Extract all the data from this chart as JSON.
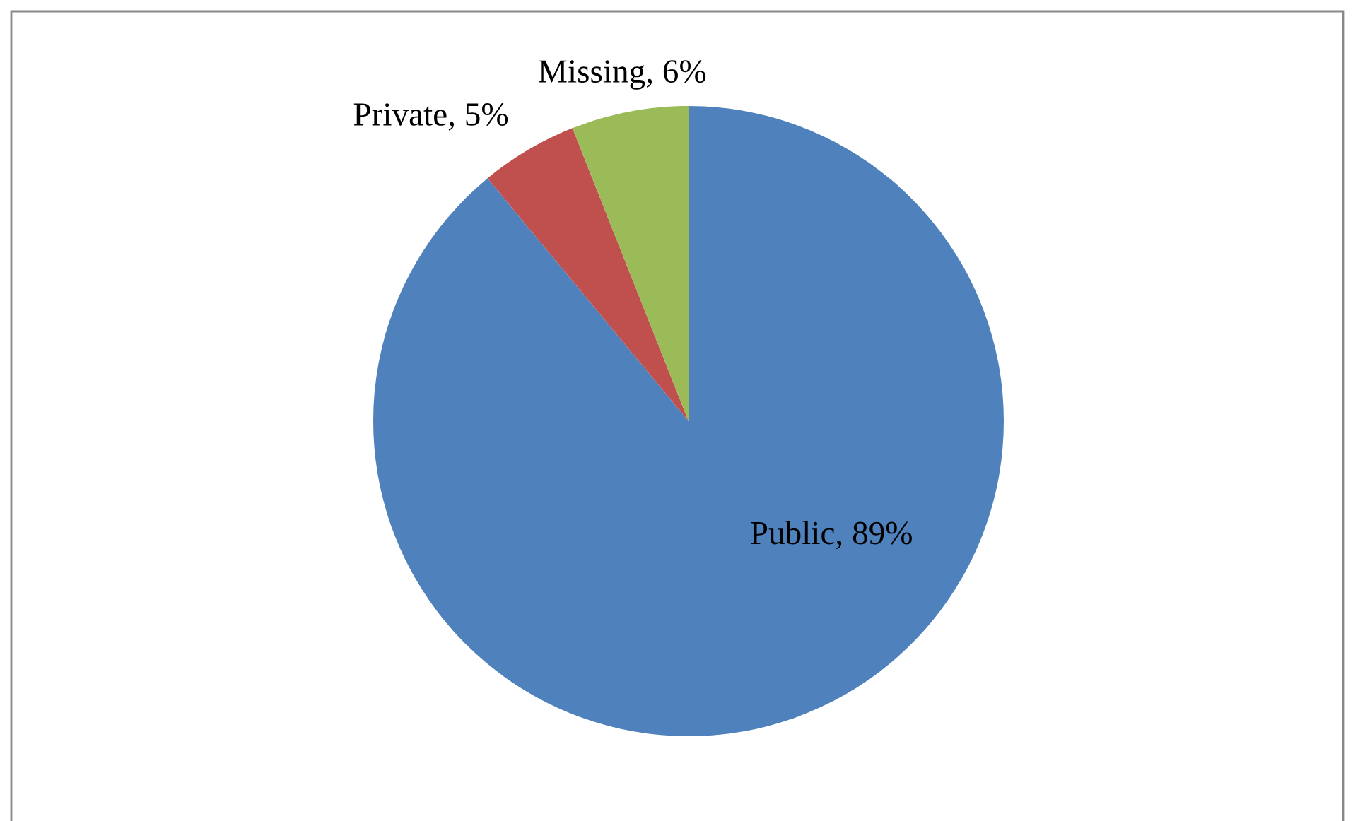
{
  "chart_data": {
    "type": "pie",
    "categories": [
      "Public",
      "Private",
      "Missing"
    ],
    "values": [
      89,
      5,
      6
    ],
    "colors": [
      "#4f81bd",
      "#c0504d",
      "#9bbb59"
    ],
    "value_labels": [
      "89%",
      "5%",
      "6%"
    ]
  }
}
